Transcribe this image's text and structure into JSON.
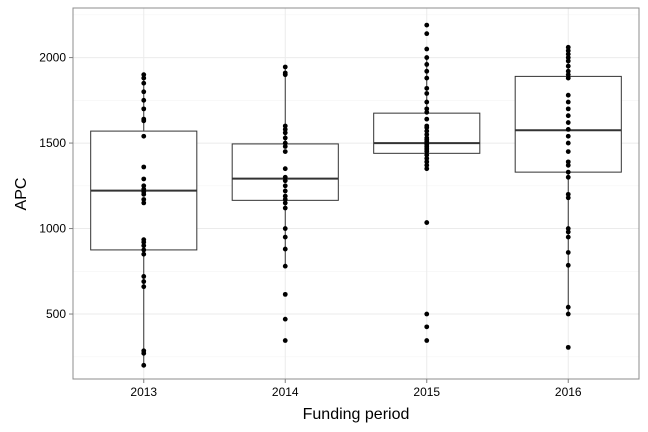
{
  "chart_data": {
    "type": "box",
    "xlabel": "Funding period",
    "ylabel": "APC",
    "ylim": [
      120,
      2290
    ],
    "yticks": [
      500,
      1000,
      1500,
      2000
    ],
    "grid": true,
    "categories": [
      "2013",
      "2014",
      "2015",
      "2016"
    ],
    "boxes": [
      {
        "category": "2013",
        "q1": 875,
        "median": 1222,
        "q3": 1570,
        "points": [
          200,
          270,
          285,
          660,
          690,
          720,
          850,
          875,
          900,
          920,
          935,
          1150,
          1170,
          1200,
          1215,
          1230,
          1250,
          1290,
          1360,
          1540,
          1630,
          1640,
          1700,
          1750,
          1800,
          1850,
          1880,
          1900
        ]
      },
      {
        "category": "2014",
        "q1": 1165,
        "median": 1292,
        "q3": 1495,
        "points": [
          345,
          470,
          615,
          780,
          880,
          950,
          1000,
          1120,
          1150,
          1170,
          1190,
          1220,
          1250,
          1280,
          1300,
          1350,
          1450,
          1480,
          1500,
          1530,
          1560,
          1580,
          1600,
          1900,
          1910,
          1945
        ]
      },
      {
        "category": "2015",
        "q1": 1440,
        "median": 1500,
        "q3": 1675,
        "points": [
          345,
          425,
          500,
          1035,
          1350,
          1370,
          1390,
          1410,
          1430,
          1450,
          1460,
          1470,
          1480,
          1490,
          1500,
          1510,
          1520,
          1530,
          1550,
          1570,
          1590,
          1600,
          1640,
          1680,
          1700,
          1740,
          1790,
          1820,
          1880,
          1920,
          1960,
          2000,
          2050,
          2140,
          2190
        ]
      },
      {
        "category": "2016",
        "q1": 1330,
        "median": 1575,
        "q3": 1890,
        "points": [
          305,
          500,
          540,
          785,
          860,
          950,
          980,
          1000,
          1180,
          1200,
          1300,
          1330,
          1370,
          1390,
          1450,
          1500,
          1540,
          1580,
          1620,
          1660,
          1700,
          1740,
          1780,
          1880,
          1900,
          1920,
          1950,
          1980,
          2000,
          2020,
          2040,
          2060
        ]
      }
    ]
  }
}
